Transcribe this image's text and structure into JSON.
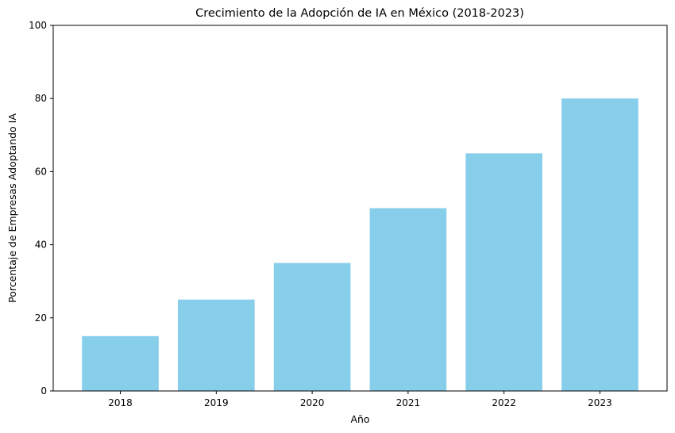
{
  "chart_data": {
    "type": "bar",
    "title": "Crecimiento de la Adopción de IA en México (2018-2023)",
    "xlabel": "Año",
    "ylabel": "Porcentaje de Empresas Adoptando IA",
    "categories": [
      "2018",
      "2019",
      "2020",
      "2021",
      "2022",
      "2023"
    ],
    "values": [
      15,
      25,
      35,
      50,
      65,
      80
    ],
    "ylim": [
      0,
      100
    ],
    "yticks": [
      0,
      20,
      40,
      60,
      80,
      100
    ],
    "grid": false,
    "legend": "none",
    "bar_color": "#87ceeb"
  }
}
